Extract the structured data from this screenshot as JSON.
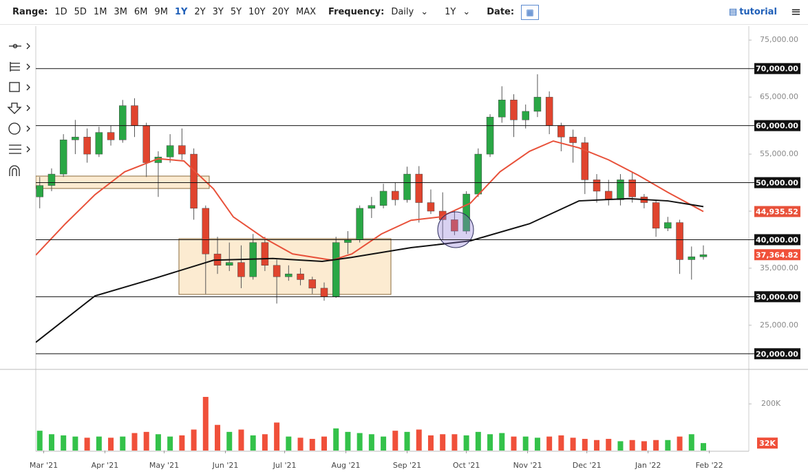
{
  "toolbar": {
    "range_label": "Range:",
    "ranges": [
      "1D",
      "5D",
      "1M",
      "3M",
      "6M",
      "9M",
      "1Y",
      "2Y",
      "3Y",
      "5Y",
      "10Y",
      "20Y",
      "MAX"
    ],
    "selected_range": 6,
    "frequency_label": "Frequency:",
    "frequency": "Daily",
    "period": "1Y",
    "date_label": "Date:",
    "tutorial": "tutorial"
  },
  "chart_data": {
    "type": "candlestick",
    "xlim": [
      0,
      361
    ],
    "xticks": [
      {
        "value": 4,
        "label": "Mar '21"
      },
      {
        "value": 35,
        "label": "Apr '21"
      },
      {
        "value": 65,
        "label": "May '21"
      },
      {
        "value": 96,
        "label": "Jun '21"
      },
      {
        "value": 126,
        "label": "Jul '21"
      },
      {
        "value": 157,
        "label": "Aug '21"
      },
      {
        "value": 188,
        "label": "Sep '21"
      },
      {
        "value": 218,
        "label": "Oct '21"
      },
      {
        "value": 249,
        "label": "Nov '21"
      },
      {
        "value": 279,
        "label": "Dec '21"
      },
      {
        "value": 310,
        "label": "Jan '22"
      },
      {
        "value": 341,
        "label": "Feb '22"
      }
    ],
    "ylim": [
      17500,
      77200
    ],
    "yticks": [
      {
        "value": 20000,
        "label": "20,000.00",
        "line": true
      },
      {
        "value": 25000,
        "label": "25,000.00"
      },
      {
        "value": 30000,
        "label": "30,000.00",
        "line": true
      },
      {
        "value": 35000,
        "label": "35,000.00"
      },
      {
        "value": 40000,
        "label": "40,000.00",
        "line": true
      },
      {
        "value": 45000,
        "label": "45,000.00"
      },
      {
        "value": 50000,
        "label": "50,000.00",
        "line": true
      },
      {
        "value": 55000,
        "label": "55,000.00"
      },
      {
        "value": 60000,
        "label": "60,000.00",
        "line": true
      },
      {
        "value": 65000,
        "label": "65,000.00"
      },
      {
        "value": 70000,
        "label": "70,000.00",
        "line": true
      },
      {
        "value": 75000,
        "label": "75,000.00"
      }
    ],
    "candles": {
      "up_color": "#2aa745",
      "down_color": "#e0442e",
      "last_label": "37,364.82",
      "badge_color": "#f0503a",
      "x": [
        2,
        8,
        14,
        20,
        26,
        32,
        38,
        44,
        50,
        56,
        62,
        68,
        74,
        80,
        86,
        92,
        98,
        104,
        110,
        116,
        122,
        128,
        134,
        140,
        146,
        152,
        158,
        164,
        170,
        176,
        182,
        188,
        194,
        200,
        206,
        212,
        218,
        224,
        230,
        236,
        242,
        248,
        254,
        260,
        266,
        272,
        278,
        284,
        290,
        296,
        302,
        308,
        314,
        320,
        326,
        332,
        338
      ],
      "open": [
        47500,
        49500,
        51500,
        57500,
        58000,
        55000,
        58800,
        57500,
        63500,
        60000,
        53500,
        54500,
        56500,
        55000,
        45500,
        37500,
        35500,
        36000,
        33500,
        39500,
        35500,
        33500,
        34000,
        33000,
        31500,
        30000,
        39500,
        40000,
        45500,
        46000,
        48500,
        47000,
        51500,
        46500,
        45000,
        43500,
        41500,
        48000,
        55000,
        61500,
        64500,
        61000,
        62500,
        65000,
        60000,
        58000,
        57000,
        50500,
        48500,
        47000,
        50500,
        47500,
        46500,
        42000,
        43000,
        36500,
        37000
      ],
      "high": [
        51000,
        52500,
        58500,
        61000,
        59500,
        59800,
        60000,
        64500,
        64800,
        60500,
        55500,
        58500,
        59500,
        56000,
        46000,
        40500,
        39500,
        39000,
        41000,
        40500,
        36500,
        35500,
        35000,
        33500,
        32500,
        40500,
        41500,
        46000,
        47500,
        49800,
        50000,
        52800,
        52900,
        48800,
        48300,
        45000,
        48500,
        56000,
        62000,
        66900,
        65500,
        63700,
        69000,
        66000,
        60500,
        59300,
        58000,
        51500,
        50500,
        51500,
        51900,
        48000,
        47000,
        44000,
        43500,
        38800,
        39000
      ],
      "low": [
        45500,
        48500,
        51000,
        55000,
        53500,
        54500,
        56500,
        57000,
        58000,
        51000,
        47500,
        53500,
        54000,
        43500,
        30500,
        34000,
        34500,
        31500,
        33000,
        34500,
        28800,
        32800,
        32000,
        30500,
        29300,
        29800,
        37500,
        39500,
        43800,
        45500,
        46000,
        46500,
        43000,
        44500,
        40000,
        40800,
        41000,
        47500,
        54500,
        60500,
        58000,
        59500,
        61500,
        58500,
        55500,
        53500,
        48000,
        46500,
        46000,
        46000,
        46500,
        45500,
        40500,
        41500,
        34000,
        33000,
        36500
      ],
      "close": [
        49500,
        51500,
        57500,
        58000,
        55000,
        58800,
        57500,
        63500,
        60000,
        53500,
        54500,
        56500,
        55000,
        45500,
        37500,
        35500,
        36000,
        33500,
        39500,
        35500,
        33500,
        34000,
        33000,
        31500,
        30000,
        39500,
        40000,
        45500,
        46000,
        48500,
        47000,
        51500,
        46500,
        45000,
        43500,
        41500,
        48000,
        55000,
        61500,
        64500,
        61000,
        62500,
        65000,
        60000,
        58000,
        57000,
        50500,
        48500,
        47000,
        50500,
        47500,
        46500,
        42000,
        43000,
        36500,
        37000,
        37364.82
      ]
    },
    "lines": [
      {
        "color": "#e8513a",
        "last_label": "44,935.52",
        "x": [
          0,
          15,
          30,
          45,
          62,
          75,
          90,
          100,
          115,
          130,
          150,
          160,
          175,
          190,
          205,
          220,
          235,
          250,
          262,
          275,
          290,
          305,
          320,
          338
        ],
        "values": [
          37300,
          42800,
          47900,
          51900,
          54200,
          53800,
          48900,
          44000,
          40400,
          37500,
          36400,
          37500,
          41000,
          43400,
          44000,
          46400,
          51900,
          55500,
          57300,
          56100,
          54000,
          51300,
          48300,
          44935.52
        ]
      },
      {
        "color": "#111111",
        "x": [
          0,
          30,
          60,
          90,
          120,
          145,
          160,
          190,
          220,
          250,
          275,
          300,
          320,
          338
        ],
        "values": [
          22000,
          30150,
          33200,
          36400,
          36700,
          36200,
          36900,
          38600,
          39800,
          42800,
          46800,
          47200,
          46800,
          45800
        ]
      }
    ],
    "volume": {
      "ylim": [
        0,
        345
      ],
      "yticks": [
        {
          "value": 200,
          "label": "200K"
        }
      ],
      "last_label": "32K",
      "values": [
        85,
        70,
        65,
        60,
        55,
        60,
        55,
        60,
        75,
        80,
        70,
        60,
        65,
        90,
        230,
        110,
        80,
        90,
        65,
        70,
        120,
        60,
        55,
        50,
        60,
        95,
        80,
        75,
        70,
        60,
        85,
        80,
        90,
        65,
        70,
        70,
        65,
        80,
        70,
        75,
        60,
        60,
        55,
        60,
        65,
        55,
        50,
        45,
        50,
        40,
        45,
        40,
        45,
        45,
        60,
        70,
        32
      ]
    }
  }
}
